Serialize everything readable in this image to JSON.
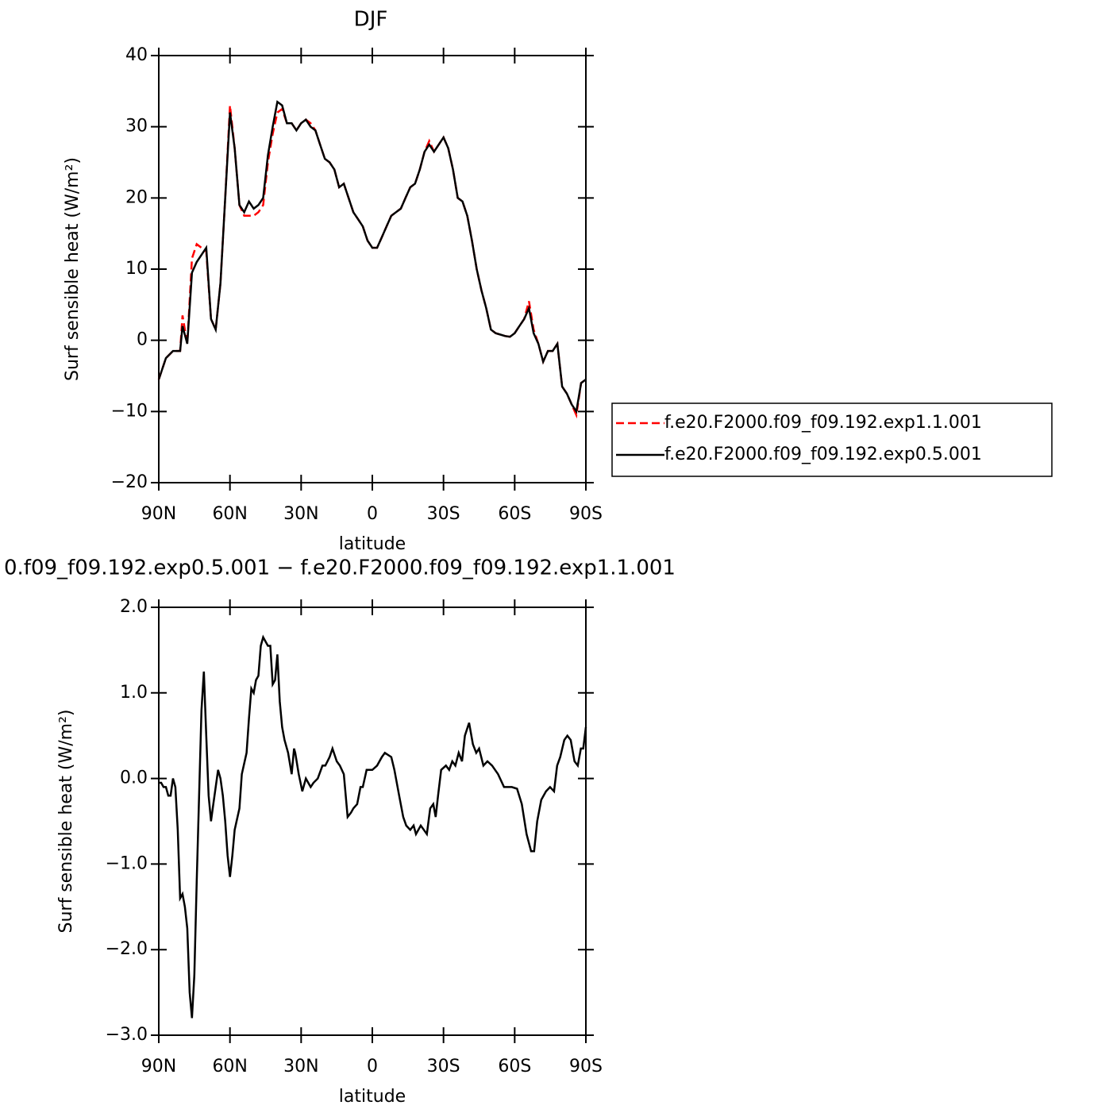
{
  "chart_data": [
    {
      "type": "line",
      "title": "DJF",
      "xlabel": "latitude",
      "ylabel": "Surf sensible heat (W/m²)",
      "xlim": [
        90,
        -90
      ],
      "ylim": [
        -20,
        40
      ],
      "xticks": [
        {
          "value": 90,
          "label": "90N"
        },
        {
          "value": 60,
          "label": "60N"
        },
        {
          "value": 30,
          "label": "30N"
        },
        0,
        {
          "value": -30,
          "label": "30S"
        },
        {
          "value": -60,
          "label": "60S"
        },
        {
          "value": -90,
          "label": "90S"
        }
      ],
      "yticks": [
        {
          "value": -20,
          "label": "−20"
        },
        {
          "value": -10,
          "label": "−10"
        },
        0,
        10,
        20,
        30,
        40
      ],
      "x": [
        90,
        87,
        84,
        81,
        80,
        78,
        76,
        74,
        72,
        70,
        68,
        66,
        64,
        62,
        60,
        58,
        56,
        54,
        52,
        50,
        48,
        46,
        44,
        42,
        40,
        38,
        36,
        34,
        32,
        30,
        28,
        26,
        24,
        22,
        20,
        18,
        16,
        14,
        12,
        10,
        8,
        6,
        4,
        2,
        0,
        -2,
        -4,
        -6,
        -8,
        -10,
        -12,
        -14,
        -16,
        -18,
        -20,
        -22,
        -24,
        -26,
        -28,
        -30,
        -32,
        -34,
        -36,
        -38,
        -40,
        -42,
        -44,
        -46,
        -48,
        -50,
        -52,
        -54,
        -56,
        -58,
        -60,
        -62,
        -64,
        -66,
        -68,
        -70,
        -72,
        -74,
        -76,
        -78,
        -80,
        -82,
        -84,
        -86,
        -88,
        -90
      ],
      "legend": "right",
      "series": [
        {
          "name": "f.e20.F2000.f09_f09.192.exp1.1.001",
          "color": "#ff0000",
          "dash": true,
          "values": [
            -5.5,
            -2.5,
            -1.5,
            -1.5,
            3.5,
            -0.5,
            11.5,
            13.5,
            13,
            12.5,
            3,
            1.5,
            8,
            20,
            33,
            27,
            19,
            17.5,
            17.5,
            17.5,
            18,
            19,
            25,
            29,
            32,
            32.5,
            30.5,
            30.5,
            29.5,
            30.5,
            31,
            30.5,
            29.5,
            27.5,
            25.5,
            25,
            24,
            21.5,
            22,
            20,
            18,
            17,
            16,
            14,
            13,
            13,
            14.5,
            16,
            17.5,
            18,
            18.5,
            20,
            21.5,
            22,
            24,
            26.5,
            28,
            26.5,
            27.5,
            28.5,
            27,
            24,
            20,
            19.5,
            17.5,
            14,
            10,
            7,
            4.5,
            1.5,
            1,
            0.8,
            0.6,
            0.5,
            1,
            2,
            3,
            5.5,
            1.5,
            -0.5,
            -3,
            -1.5,
            -1.5,
            -0.5,
            -6.5,
            -7.5,
            -9,
            -10.5,
            -6,
            -5.5
          ]
        },
        {
          "name": "f.e20.F2000.f09_f09.192.exp0.5.001",
          "color": "#000000",
          "dash": false,
          "values": [
            -5.5,
            -2.5,
            -1.5,
            -1.5,
            2,
            -0.5,
            9.5,
            11,
            12,
            13,
            3,
            1.5,
            8,
            20,
            32,
            27,
            19,
            18,
            19.5,
            18.5,
            19,
            20,
            26,
            30,
            33.5,
            33,
            30.5,
            30.5,
            29.5,
            30.5,
            31,
            30,
            29.5,
            27.5,
            25.5,
            25,
            24,
            21.5,
            22,
            20,
            18,
            17,
            16,
            14,
            13,
            13,
            14.5,
            16,
            17.5,
            18,
            18.5,
            20,
            21.5,
            22,
            24,
            26.5,
            27.5,
            26.5,
            27.5,
            28.5,
            27,
            24,
            20,
            19.5,
            17.5,
            14,
            10,
            7,
            4.5,
            1.5,
            1,
            0.8,
            0.6,
            0.5,
            1,
            2,
            3,
            4.5,
            1,
            -0.5,
            -3,
            -1.5,
            -1.5,
            -0.5,
            -6.5,
            -7.5,
            -9,
            -10,
            -6,
            -5.5
          ]
        }
      ]
    },
    {
      "type": "line",
      "title": "0.f09_f09.192.exp0.5.001 − f.e20.F2000.f09_f09.192.exp1.1.001",
      "xlabel": "latitude",
      "ylabel": "Surf sensible heat (W/m²)",
      "xlim": [
        90,
        -90
      ],
      "ylim": [
        -3,
        2
      ],
      "xticks": [
        {
          "value": 90,
          "label": "90N"
        },
        {
          "value": 60,
          "label": "60N"
        },
        {
          "value": 30,
          "label": "30N"
        },
        0,
        {
          "value": -30,
          "label": "30S"
        },
        {
          "value": -60,
          "label": "60S"
        },
        {
          "value": -90,
          "label": "90S"
        }
      ],
      "yticks": [
        {
          "value": -3,
          "label": "−3.0"
        },
        {
          "value": -2,
          "label": "−2.0"
        },
        {
          "value": -1,
          "label": "−1.0"
        },
        {
          "value": 0,
          "label": "0.0"
        },
        {
          "value": 1,
          "label": "1.0"
        },
        {
          "value": 2,
          "label": "2.0"
        }
      ],
      "x": [
        90,
        89,
        88,
        87,
        86,
        85,
        84,
        83,
        82,
        81,
        80,
        79,
        78,
        77,
        76,
        75,
        74,
        73,
        72,
        71,
        70,
        69,
        68,
        67,
        66,
        65,
        64,
        63,
        62,
        61,
        60,
        59,
        58,
        56,
        55,
        53,
        52,
        51,
        50,
        49,
        48,
        47,
        46,
        45,
        44,
        43,
        42,
        41,
        40,
        39,
        38,
        37,
        35.5,
        34,
        33,
        32.5,
        31,
        29.5,
        28,
        27,
        26,
        24.8,
        23,
        21,
        19.8,
        18,
        16.8,
        15,
        13.7,
        12,
        10.4,
        9,
        8,
        6.4,
        5,
        4,
        2.4,
        1,
        0,
        -2,
        -4,
        -5.3,
        -8,
        -9.3,
        -11.3,
        -13,
        -14.3,
        -16,
        -17.4,
        -18.4,
        -20.4,
        -21.7,
        -23,
        -24.4,
        -25.7,
        -26.7,
        -27.7,
        -29,
        -31,
        -32.4,
        -33.7,
        -35,
        -36.4,
        -37.8,
        -39,
        -40.8,
        -42.4,
        -43.8,
        -45,
        -46.8,
        -48.5,
        -50.5,
        -53,
        -55.5,
        -58.8,
        -61,
        -63,
        -65,
        -66.9,
        -68.2,
        -69.5,
        -71.2,
        -73.2,
        -74.9,
        -76.6,
        -77.9,
        -79.2,
        -80.9,
        -82.2,
        -83.6,
        -85.2,
        -86.6,
        -87.9,
        -88.9,
        -90
      ],
      "series": [
        {
          "color": "#000000",
          "dash": false,
          "values": [
            -0.05,
            -0.05,
            -0.1,
            -0.1,
            -0.2,
            -0.2,
            0,
            -0.1,
            -0.6,
            -1.4,
            -1.35,
            -1.5,
            -1.75,
            -2.5,
            -2.8,
            -2.3,
            -1.2,
            -0.2,
            0.8,
            1.25,
            0.5,
            -0.2,
            -0.5,
            -0.3,
            -0.1,
            0.1,
            0,
            -0.2,
            -0.5,
            -0.9,
            -1.15,
            -0.9,
            -0.6,
            -0.35,
            0.05,
            0.3,
            0.7,
            1.05,
            1.0,
            1.15,
            1.2,
            1.55,
            1.65,
            1.6,
            1.55,
            1.55,
            1.1,
            1.15,
            1.45,
            0.9,
            0.6,
            0.45,
            0.3,
            0.05,
            0.35,
            0.3,
            0.05,
            -0.15,
            0,
            -0.05,
            -0.1,
            -0.05,
            0,
            0.15,
            0.15,
            0.25,
            0.35,
            0.2,
            0.15,
            0.05,
            -0.45,
            -0.4,
            -0.35,
            -0.3,
            -0.1,
            -0.1,
            0.1,
            0.1,
            0.1,
            0.15,
            0.25,
            0.3,
            0.25,
            0.1,
            -0.2,
            -0.45,
            -0.55,
            -0.6,
            -0.55,
            -0.65,
            -0.55,
            -0.6,
            -0.65,
            -0.35,
            -0.3,
            -0.45,
            -0.2,
            0.1,
            0.15,
            0.1,
            0.2,
            0.15,
            0.3,
            0.2,
            0.5,
            0.65,
            0.4,
            0.3,
            0.35,
            0.15,
            0.2,
            0.15,
            0.05,
            -0.1,
            -0.1,
            -0.12,
            -0.3,
            -0.65,
            -0.85,
            -0.85,
            -0.5,
            -0.25,
            -0.15,
            -0.1,
            -0.15,
            0.15,
            0.25,
            0.45,
            0.5,
            0.45,
            0.2,
            0.15,
            0.35,
            0.35,
            0.6
          ]
        }
      ]
    }
  ]
}
